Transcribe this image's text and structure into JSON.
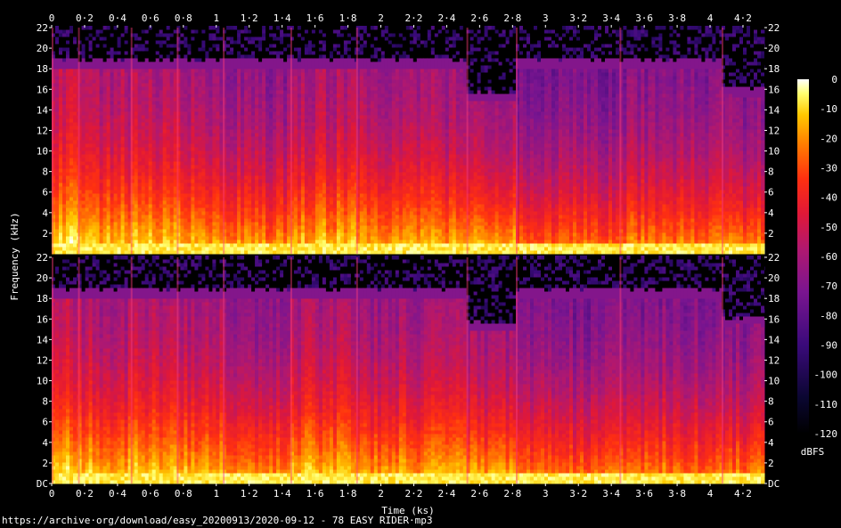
{
  "chart_data": {
    "type": "heatmap",
    "title": "",
    "xlabel": "Time (ks)",
    "ylabel": "Frequency (kHz)",
    "colorbar_label": "dBFS",
    "x_ticks": [
      "0",
      "0·2",
      "0·4",
      "0·6",
      "0·8",
      "1",
      "1·2",
      "1·4",
      "1·6",
      "1·8",
      "2",
      "2·2",
      "2·4",
      "2·6",
      "2·8",
      "3",
      "3·2",
      "3·4",
      "3·6",
      "3·8",
      "4",
      "4·2"
    ],
    "x_range_ks": [
      0,
      4.33
    ],
    "channels": 2,
    "y_ticks_top": [
      "22",
      "20",
      "18",
      "16",
      "14",
      "12",
      "10",
      "8",
      "6",
      "4",
      "2"
    ],
    "y_ticks_bottom": [
      "22",
      "20",
      "18",
      "16",
      "14",
      "12",
      "10",
      "8",
      "6",
      "4",
      "2",
      "DC"
    ],
    "y_range_khz": [
      0,
      22
    ],
    "colorbar_ticks": [
      "0",
      "-10",
      "-20",
      "-30",
      "-40",
      "-50",
      "-60",
      "-70",
      "-80",
      "-90",
      "-100",
      "-110",
      "-120"
    ],
    "colorbar_range_dbfs": [
      -120,
      0
    ],
    "lowpass_cutoff_khz": 18.8,
    "segments": [
      {
        "start_ks": 0.0,
        "end_ks": 0.16,
        "cutoff_khz": 18.8,
        "level": 0.62
      },
      {
        "start_ks": 0.16,
        "end_ks": 0.48,
        "cutoff_khz": 18.8,
        "level": 0.58
      },
      {
        "start_ks": 0.48,
        "end_ks": 0.76,
        "cutoff_khz": 18.8,
        "level": 0.6
      },
      {
        "start_ks": 0.76,
        "end_ks": 1.04,
        "cutoff_khz": 18.8,
        "level": 0.57
      },
      {
        "start_ks": 1.04,
        "end_ks": 1.45,
        "cutoff_khz": 18.8,
        "level": 0.52
      },
      {
        "start_ks": 1.45,
        "end_ks": 1.85,
        "cutoff_khz": 18.8,
        "level": 0.58
      },
      {
        "start_ks": 1.85,
        "end_ks": 2.52,
        "cutoff_khz": 18.8,
        "level": 0.55
      },
      {
        "start_ks": 2.52,
        "end_ks": 2.82,
        "cutoff_khz": 15.5,
        "level": 0.56
      },
      {
        "start_ks": 2.82,
        "end_ks": 3.45,
        "cutoff_khz": 18.8,
        "level": 0.47
      },
      {
        "start_ks": 3.45,
        "end_ks": 4.07,
        "cutoff_khz": 18.8,
        "level": 0.5
      },
      {
        "start_ks": 4.07,
        "end_ks": 4.33,
        "cutoff_khz": 16.0,
        "level": 0.5
      }
    ],
    "colors": {
      "background": "#000000",
      "text": "#ffffff"
    }
  },
  "footer": {
    "source": "https://archive·org/download/easy_20200913/2020-09-12 - 78 EASY RIDER·mp3"
  }
}
